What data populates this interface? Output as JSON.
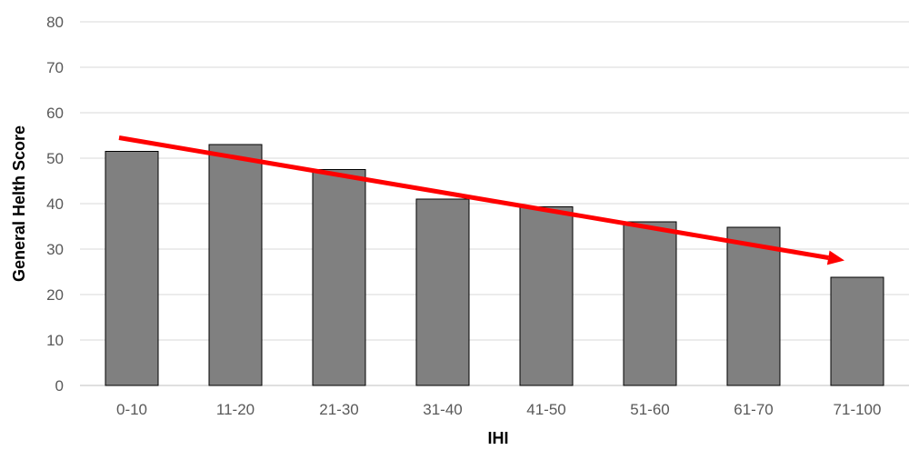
{
  "chart_data": {
    "type": "bar",
    "title": "",
    "xlabel": "IHI",
    "ylabel": "General Helth Score",
    "ylim": [
      0,
      80
    ],
    "yticks": [
      0,
      10,
      20,
      30,
      40,
      50,
      60,
      70,
      80
    ],
    "categories": [
      "0-10",
      "11-20",
      "21-30",
      "31-40",
      "41-50",
      "51-60",
      "61-70",
      "71-100"
    ],
    "values": [
      51.5,
      53.0,
      47.5,
      41.0,
      39.3,
      36.0,
      34.8,
      23.8
    ],
    "grid": true,
    "legend": "none",
    "trend_arrow": {
      "start": {
        "category": "0-10",
        "value": 54.5
      },
      "end": {
        "category": "71-100",
        "value": 27.5
      }
    },
    "colors": {
      "bar_fill": "#808080",
      "bar_stroke": "#000000",
      "trend_arrow": "#ff0000",
      "gridline": "#d9d9d9",
      "tick_text": "#595959"
    }
  }
}
